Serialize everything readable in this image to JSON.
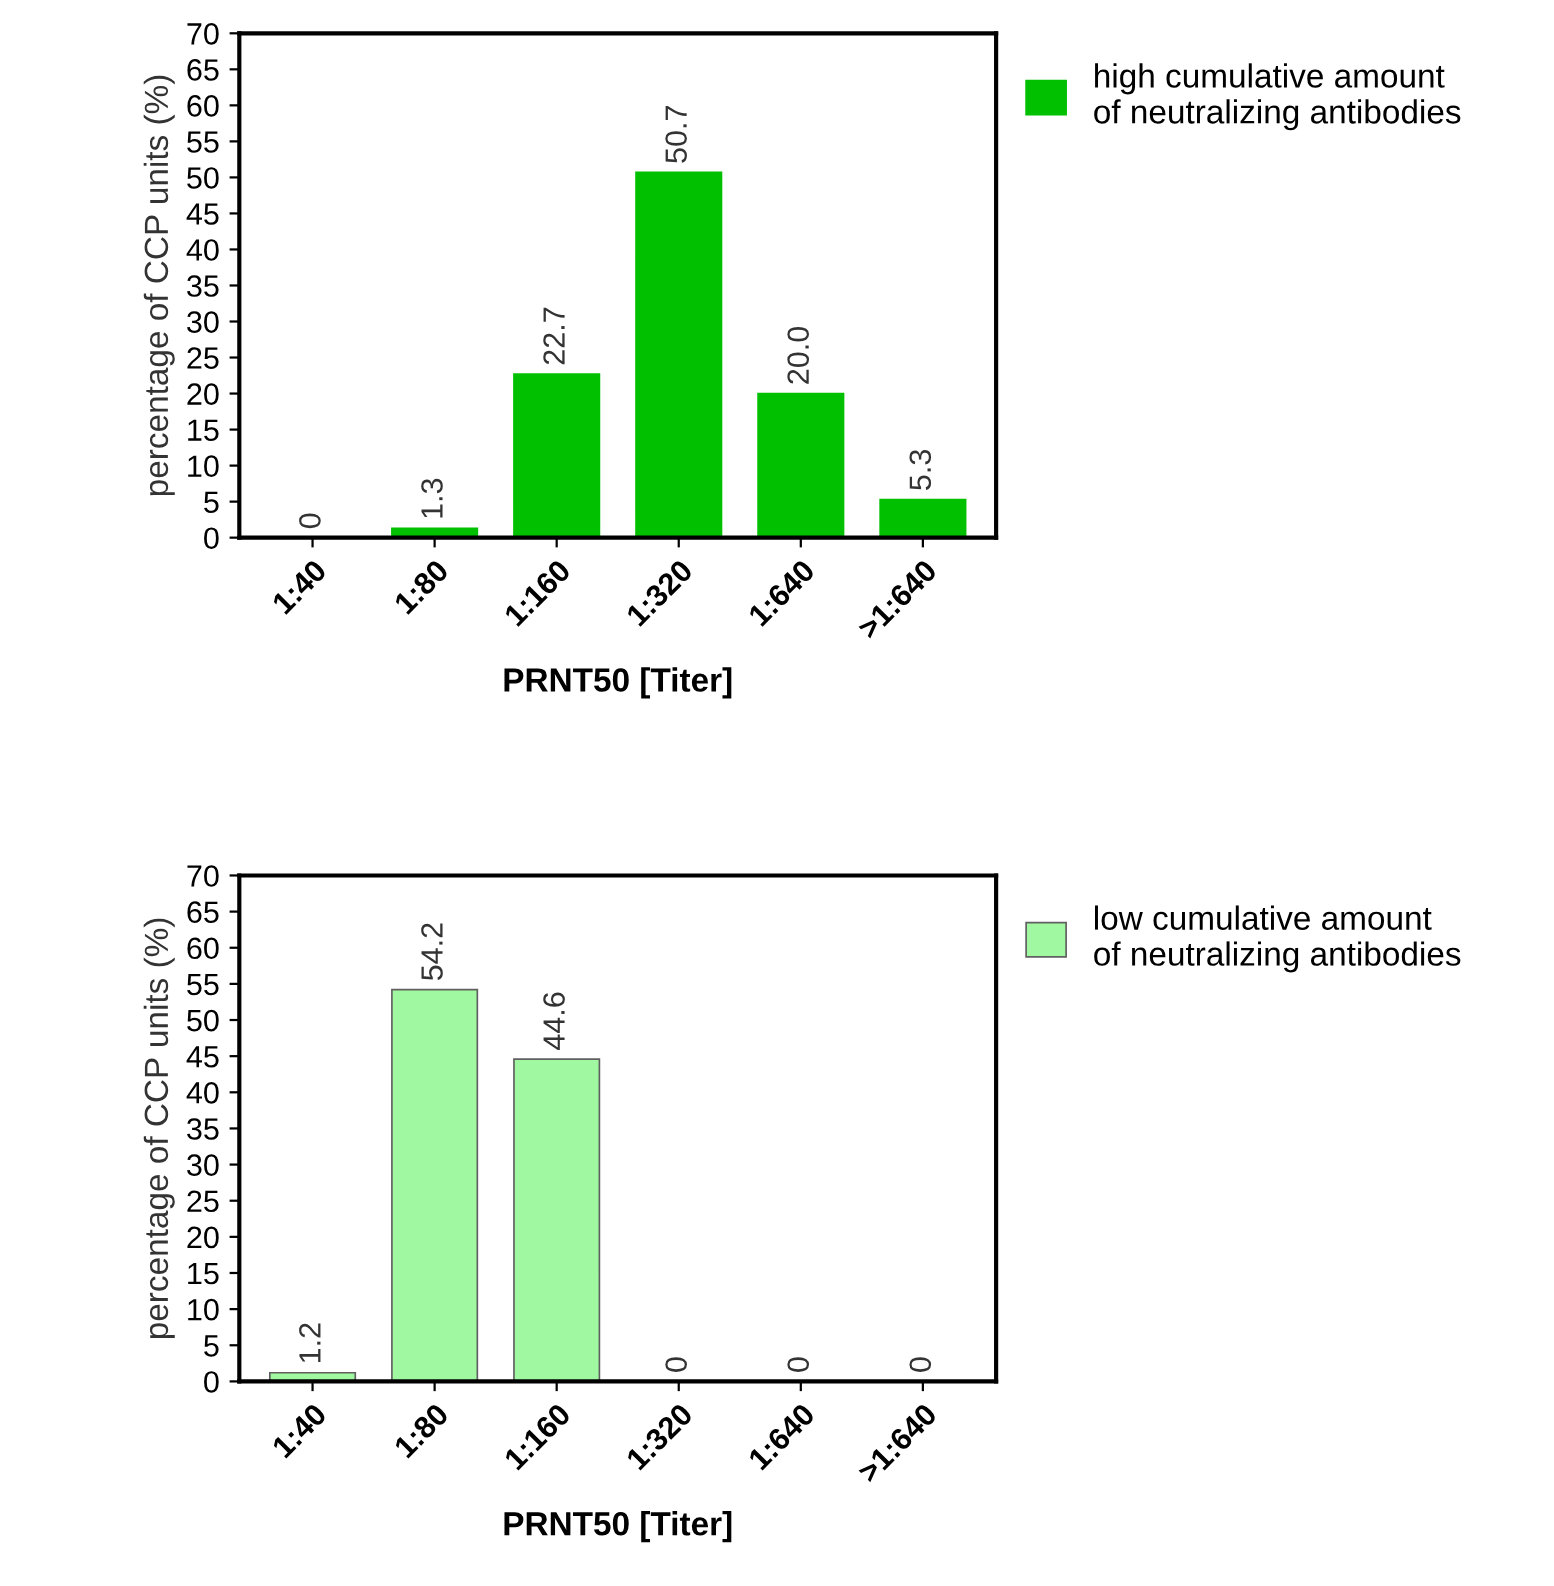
{
  "chart_data": [
    {
      "type": "bar",
      "xlabel": "PRNT50 [Titer]",
      "ylabel": "percentage of CCP units (%)",
      "categories": [
        "1:40",
        "1:80",
        "1:160",
        "1:320",
        "1:640",
        ">1:640"
      ],
      "series": [
        {
          "name": "high cumulative amount\nof neutralizing antibodies",
          "color": "#00c000",
          "values": [
            0,
            1.3,
            22.7,
            50.7,
            20.0,
            5.3
          ],
          "value_labels": [
            "0",
            "1.3",
            "22.7",
            "50.7",
            "20.0",
            "5.3"
          ]
        }
      ],
      "ylim": [
        0,
        70
      ],
      "yticks": [
        0,
        5,
        10,
        15,
        20,
        25,
        30,
        35,
        40,
        45,
        50,
        55,
        60,
        65,
        70
      ],
      "grid": false,
      "legend": "top right"
    },
    {
      "type": "bar",
      "xlabel": "PRNT50 [Titer]",
      "ylabel": "percentage of CCP units (%)",
      "categories": [
        "1:40",
        "1:80",
        "1:160",
        "1:320",
        "1:640",
        ">1:640"
      ],
      "series": [
        {
          "name": "low cumulative amount\nof neutralizing antibodies",
          "color": "#a0f8a0",
          "values": [
            1.2,
            54.2,
            44.6,
            0,
            0,
            0
          ],
          "value_labels": [
            "1.2",
            "54.2",
            "44.6",
            "0",
            "0",
            "0"
          ]
        }
      ],
      "ylim": [
        0,
        70
      ],
      "yticks": [
        0,
        5,
        10,
        15,
        20,
        25,
        30,
        35,
        40,
        45,
        50,
        55,
        60,
        65,
        70
      ],
      "grid": false,
      "legend": "top right"
    }
  ]
}
